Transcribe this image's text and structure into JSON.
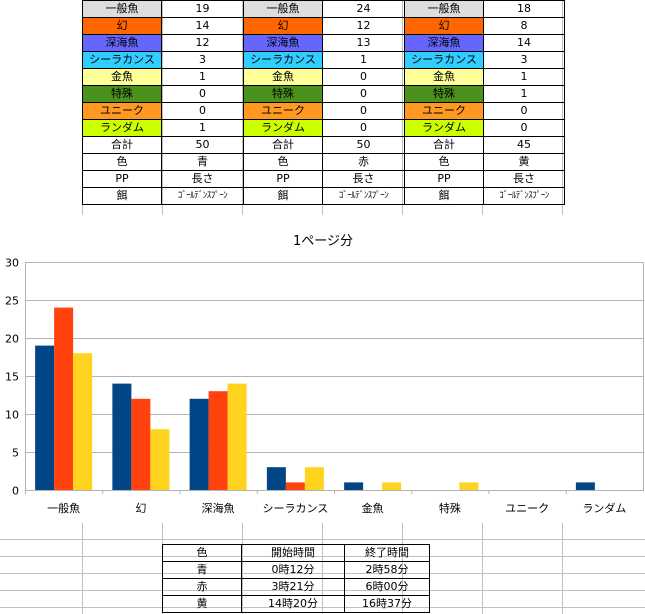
{
  "colors": {
    "一般魚": "#dddddd",
    "幻": "#ff6600",
    "深海魚": "#6666ff",
    "シーラカンス": "#33ccff",
    "金魚": "#ffff99",
    "特殊": "#4b921c",
    "ユニーク": "#ff9922",
    "ランダム": "#ccff00",
    "series_blue": "#004586",
    "series_red": "#ff420e",
    "series_yellow": "#ffd320"
  },
  "top_table": {
    "rows": [
      {
        "label": "一般魚",
        "v1": "19",
        "v2": "24",
        "v3": "18"
      },
      {
        "label": "幻",
        "v1": "14",
        "v2": "12",
        "v3": "8"
      },
      {
        "label": "深海魚",
        "v1": "12",
        "v2": "13",
        "v3": "14"
      },
      {
        "label": "シーラカンス",
        "v1": "3",
        "v2": "1",
        "v3": "3"
      },
      {
        "label": "金魚",
        "v1": "1",
        "v2": "0",
        "v3": "1"
      },
      {
        "label": "特殊",
        "v1": "0",
        "v2": "0",
        "v3": "1"
      },
      {
        "label": "ユニーク",
        "v1": "0",
        "v2": "0",
        "v3": "0"
      },
      {
        "label": "ランダム",
        "v1": "1",
        "v2": "0",
        "v3": "0"
      },
      {
        "label": "合計",
        "v1": "50",
        "v2": "50",
        "v3": "45"
      },
      {
        "label": "色",
        "v1": "青",
        "v2": "赤",
        "v3": "黄"
      },
      {
        "label": "PP",
        "v1": "長さ",
        "v2": "長さ",
        "v3": "長さ"
      },
      {
        "label": "餌",
        "v1": "ｺﾞｰﾙﾃﾞﾝｽﾌﾟｰﾝ",
        "v2": "ｺﾞｰﾙﾃﾞﾝｽﾌﾟｰﾝ",
        "v3": "ｺﾞｰﾙﾃﾞﾝｽﾌﾟｰﾝ"
      }
    ]
  },
  "chart_data": {
    "type": "bar",
    "title": "1ページ分",
    "categories": [
      "一般魚",
      "幻",
      "深海魚",
      "シーラカンス",
      "金魚",
      "特殊",
      "ユニーク",
      "ランダム"
    ],
    "series": [
      {
        "values": [
          19,
          14,
          12,
          3,
          1,
          0,
          0,
          1
        ],
        "color": "#004586"
      },
      {
        "values": [
          24,
          12,
          13,
          1,
          0,
          0,
          0,
          0
        ],
        "color": "#ff420e"
      },
      {
        "values": [
          18,
          8,
          14,
          3,
          1,
          1,
          0,
          0
        ],
        "color": "#ffd320"
      }
    ],
    "ylim": [
      0,
      30
    ],
    "yticks": [
      0,
      5,
      10,
      15,
      20,
      25,
      30
    ],
    "grid": true,
    "legend": "none"
  },
  "bottom_table": {
    "header": {
      "c1": "色",
      "c2": "開始時間",
      "c3": "終了時間"
    },
    "rows": [
      {
        "c1": "青",
        "c2": "0時12分",
        "c3": "2時58分"
      },
      {
        "c1": "赤",
        "c2": "3時21分",
        "c3": "6時00分"
      },
      {
        "c1": "黄",
        "c2": "14時20分",
        "c3": "16時37分"
      }
    ]
  }
}
